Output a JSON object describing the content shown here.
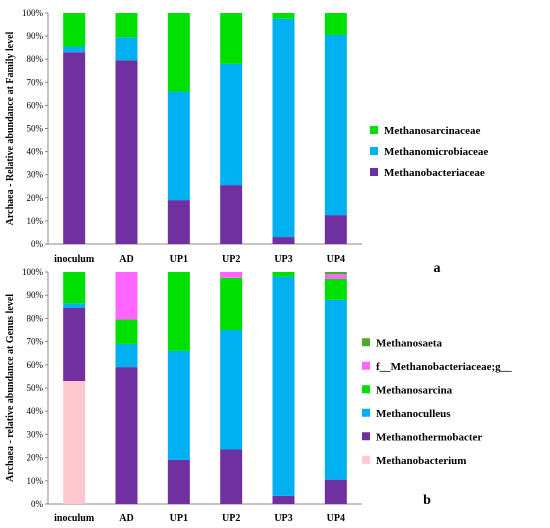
{
  "chart_data": [
    {
      "type": "bar",
      "stacked": true,
      "panel_label": "a",
      "ylabel": "Archaea - Relative abundance at Family level",
      "ylim": [
        0,
        100
      ],
      "y_ticks": [
        "0%",
        "10%",
        "20%",
        "30%",
        "40%",
        "50%",
        "60%",
        "70%",
        "80%",
        "90%",
        "100%"
      ],
      "grid": false,
      "legend_position": "right",
      "categories": [
        "inoculum",
        "AD",
        "UP1",
        "UP2",
        "UP3",
        "UP4"
      ],
      "series": [
        {
          "name": "Methanobacteriaceae",
          "color": "#7030A0",
          "values": [
            83,
            79.5,
            19,
            25.5,
            3,
            12.5
          ]
        },
        {
          "name": "Methanomicrobiaceae",
          "color": "#00B0F0",
          "values": [
            2.5,
            10,
            47,
            52.5,
            94.5,
            78
          ]
        },
        {
          "name": "Methanosarcinaceae",
          "color": "#00E000",
          "values": [
            14.5,
            10.5,
            34,
            22,
            2.5,
            9.5
          ]
        }
      ]
    },
    {
      "type": "bar",
      "stacked": true,
      "panel_label": "b",
      "ylabel": "Archaea - relative abundance at Genus level",
      "ylim": [
        0,
        100
      ],
      "y_ticks": [
        "0%",
        "10%",
        "20%",
        "30%",
        "40%",
        "50%",
        "60%",
        "70%",
        "80%",
        "90%",
        "100%"
      ],
      "grid": false,
      "legend_position": "right",
      "categories": [
        "inoculum",
        "AD",
        "UP1",
        "UP2",
        "UP3",
        "UP4"
      ],
      "series": [
        {
          "name": "Methanobacterium",
          "color": "#FFC7CE",
          "values": [
            53,
            0,
            0,
            0,
            0,
            0
          ]
        },
        {
          "name": "Methanothermobacter",
          "color": "#7030A0",
          "values": [
            31.5,
            59,
            19,
            23.5,
            3.5,
            10.5
          ]
        },
        {
          "name": "Methanoculleus",
          "color": "#00B0F0",
          "values": [
            2,
            10,
            47,
            51.5,
            94.5,
            77.5
          ]
        },
        {
          "name": "Methanosarcina",
          "color": "#00E000",
          "values": [
            13.5,
            10.5,
            34,
            22.5,
            2,
            9
          ]
        },
        {
          "name": "f__Methanobacteriaceae;g__",
          "color": "#FF66FF",
          "values": [
            0,
            20.5,
            0,
            2.5,
            0,
            2
          ]
        },
        {
          "name": "Methanosaeta",
          "color": "#4EA72E",
          "values": [
            0,
            0,
            0,
            0,
            0,
            1
          ]
        }
      ]
    }
  ]
}
